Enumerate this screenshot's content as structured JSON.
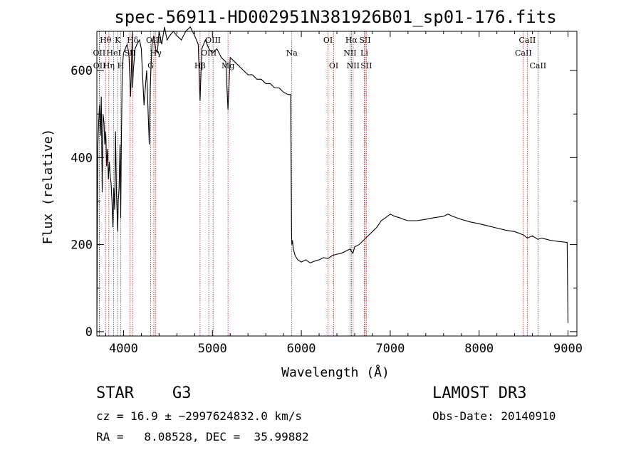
{
  "chart_data": {
    "type": "line",
    "title": "spec-56911-HD002951N381926B01_sp01-176.fits",
    "xlabel": "Wavelength (Å)",
    "ylabel": "Flux (relative)",
    "xlim": [
      3700,
      9100
    ],
    "ylim": [
      -10,
      690
    ],
    "xticks": [
      4000,
      5000,
      6000,
      7000,
      8000,
      9000
    ],
    "yticks": [
      0,
      200,
      400,
      600
    ],
    "line_color": "#000000",
    "marker_color": "#b22222",
    "series": [
      {
        "x": [
          3700,
          3705,
          3710,
          3720,
          3730,
          3740,
          3750,
          3760,
          3770,
          3780,
          3790,
          3800,
          3810,
          3820,
          3830,
          3840,
          3850,
          3860,
          3870,
          3880,
          3890,
          3900,
          3910,
          3920,
          3930,
          3935,
          3940,
          3950,
          3960,
          3968,
          3975,
          3985,
          4000,
          4020,
          4040,
          4060,
          4080,
          4100,
          4102,
          4110,
          4130,
          4150,
          4180,
          4200,
          4230,
          4260,
          4290,
          4300,
          4310,
          4320,
          4340,
          4360,
          4380,
          4400,
          4430,
          4460,
          4490,
          4520,
          4560,
          4600,
          4650,
          4700,
          4750,
          4800,
          4840,
          4861,
          4880,
          4920,
          4960,
          5000,
          5050,
          5100,
          5150,
          5175,
          5200,
          5250,
          5300,
          5350,
          5400,
          5450,
          5500,
          5550,
          5600,
          5650,
          5700,
          5750,
          5800,
          5850,
          5880,
          5890,
          5893,
          5900,
          5910,
          5930,
          5960,
          6000,
          6050,
          6100,
          6150,
          6200,
          6250,
          6300,
          6350,
          6400,
          6450,
          6500,
          6550,
          6563,
          6580,
          6600,
          6650,
          6700,
          6750,
          6800,
          6850,
          6900,
          6950,
          7000,
          7050,
          7100,
          7150,
          7200,
          7300,
          7400,
          7500,
          7600,
          7650,
          7700,
          7800,
          7900,
          8000,
          8100,
          8200,
          8300,
          8400,
          8500,
          8542,
          8600,
          8662,
          8700,
          8800,
          8900,
          8990,
          9000
        ],
        "y": [
          0,
          200,
          420,
          480,
          520,
          450,
          540,
          320,
          500,
          480,
          430,
          460,
          380,
          420,
          350,
          390,
          360,
          340,
          300,
          240,
          330,
          280,
          460,
          320,
          260,
          230,
          300,
          330,
          430,
          260,
          420,
          600,
          640,
          650,
          660,
          640,
          540,
          690,
          560,
          600,
          650,
          660,
          670,
          650,
          520,
          600,
          430,
          560,
          610,
          660,
          680,
          650,
          640,
          690,
          660,
          700,
          670,
          680,
          690,
          680,
          670,
          690,
          700,
          680,
          660,
          530,
          650,
          670,
          650,
          640,
          650,
          630,
          620,
          510,
          630,
          620,
          610,
          600,
          590,
          590,
          580,
          580,
          570,
          570,
          560,
          560,
          550,
          545,
          545,
          230,
          200,
          210,
          190,
          175,
          165,
          160,
          165,
          158,
          162,
          165,
          170,
          168,
          175,
          178,
          180,
          185,
          190,
          185,
          180,
          195,
          200,
          210,
          220,
          230,
          240,
          255,
          262,
          270,
          265,
          262,
          258,
          255,
          255,
          258,
          262,
          265,
          270,
          265,
          258,
          252,
          248,
          243,
          238,
          233,
          230,
          222,
          215,
          220,
          212,
          215,
          210,
          207,
          205,
          20
        ]
      }
    ],
    "lines": {
      "top": [
        {
          "wl": 3798,
          "label": "Hθ"
        },
        {
          "wl": 3934,
          "label": "K"
        },
        {
          "wl": 4102,
          "label": "Hδ"
        },
        {
          "wl": 4341,
          "label": "OIII"
        },
        {
          "wl": 5007,
          "label": "OIII"
        },
        {
          "wl": 6300,
          "label": "OI"
        },
        {
          "wl": 6563,
          "label": "Hα"
        },
        {
          "wl": 6716,
          "label": "SII"
        },
        {
          "wl": 8542,
          "label": "CaII"
        }
      ],
      "mid": [
        {
          "wl": 3727,
          "label": "OII"
        },
        {
          "wl": 3889,
          "label": "HeI"
        },
        {
          "wl": 4072,
          "label": "SII"
        },
        {
          "wl": 4363,
          "label": "Hγ"
        },
        {
          "wl": 4959,
          "label": "OIII"
        },
        {
          "wl": 5893,
          "label": "Na"
        },
        {
          "wl": 6548,
          "label": "NII"
        },
        {
          "wl": 6708,
          "label": "Li"
        },
        {
          "wl": 8498,
          "label": "CaII"
        }
      ],
      "low": [
        {
          "wl": 3729,
          "label": "OII"
        },
        {
          "wl": 3835,
          "label": "Hη"
        },
        {
          "wl": 3968,
          "label": "H"
        },
        {
          "wl": 4305,
          "label": "G"
        },
        {
          "wl": 4861,
          "label": "Hβ"
        },
        {
          "wl": 5175,
          "label": "Mg"
        },
        {
          "wl": 6364,
          "label": "OI"
        },
        {
          "wl": 6583,
          "label": "NII"
        },
        {
          "wl": 6731,
          "label": "SII"
        },
        {
          "wl": 8662,
          "label": "CaII"
        }
      ]
    }
  },
  "info": {
    "object_class": "STAR",
    "subclass": "G3",
    "survey": "LAMOST DR3",
    "cz": "cz = 16.9 ± −2997624832.0 km/s",
    "obs_date": "Obs-Date: 20140910",
    "coords": "RA =   8.08528, DEC =  35.99882"
  }
}
